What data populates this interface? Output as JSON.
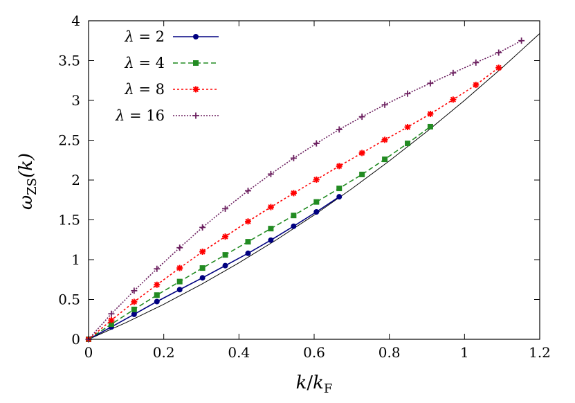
{
  "chart_data": {
    "type": "line",
    "xlabel": "k/k_F",
    "xlabel_parts": {
      "num": "k",
      "slash": "/",
      "den": "k",
      "den_sub": "F"
    },
    "ylabel": "ω_ZS(k)",
    "ylabel_parts": {
      "main": "ω",
      "sub": "ZS",
      "arg": "(k)"
    },
    "xlim": [
      0,
      1.2
    ],
    "ylim": [
      0,
      4
    ],
    "x_ticks": [
      0,
      0.2,
      0.4,
      0.6,
      0.8,
      1,
      1.2
    ],
    "x_tick_labels": [
      "0",
      "0.2",
      "0.4",
      "0.6",
      "0.8",
      "1",
      "1.2"
    ],
    "y_ticks": [
      0,
      0.5,
      1,
      1.5,
      2,
      2.5,
      3,
      3.5,
      4
    ],
    "y_tick_labels": [
      "0",
      "0.5",
      "1",
      "1.5",
      "2",
      "2.5",
      "3",
      "3.5",
      "4"
    ],
    "grid": false,
    "legend_position": "top-left",
    "reference_curve": {
      "color": "#000000",
      "x": [
        0,
        0.1,
        0.2,
        0.3,
        0.4,
        0.5,
        0.6,
        0.7,
        0.8,
        0.9,
        1.0,
        1.1,
        1.2
      ],
      "y": [
        0,
        0.21,
        0.44,
        0.69,
        0.96,
        1.25,
        1.56,
        1.89,
        2.24,
        2.61,
        3.0,
        3.41,
        3.84
      ]
    },
    "series": [
      {
        "name": "λ = 2",
        "label_lhs": "λ",
        "label_rhs": "= 2",
        "color": "#000080",
        "dash": "solid",
        "marker": "circle",
        "x": [
          0,
          0.0606,
          0.1212,
          0.1818,
          0.2424,
          0.303,
          0.3636,
          0.4242,
          0.4848,
          0.5455,
          0.6061,
          0.6667
        ],
        "y": [
          0,
          0.155,
          0.314,
          0.474,
          0.624,
          0.772,
          0.925,
          1.08,
          1.245,
          1.42,
          1.6,
          1.79
        ]
      },
      {
        "name": "λ = 4",
        "label_lhs": "λ",
        "label_rhs": "= 4",
        "color": "#228B22",
        "dash": "dashed",
        "marker": "square",
        "x": [
          0,
          0.0606,
          0.1212,
          0.1818,
          0.2424,
          0.303,
          0.3636,
          0.4242,
          0.4848,
          0.5455,
          0.6061,
          0.6667,
          0.7273,
          0.7879,
          0.8485,
          0.9091
        ],
        "y": [
          0,
          0.19,
          0.375,
          0.555,
          0.725,
          0.895,
          1.06,
          1.225,
          1.39,
          1.555,
          1.725,
          1.895,
          2.07,
          2.26,
          2.46,
          2.67
        ]
      },
      {
        "name": "λ = 8",
        "label_lhs": "λ",
        "label_rhs": "= 8",
        "color": "#FF0000",
        "dash": "dotted",
        "marker": "star",
        "x": [
          0,
          0.0606,
          0.1212,
          0.1818,
          0.2424,
          0.303,
          0.3636,
          0.4242,
          0.4848,
          0.5455,
          0.6061,
          0.6667,
          0.7273,
          0.7879,
          0.8485,
          0.9091,
          0.9697,
          1.0303,
          1.0909
        ],
        "y": [
          0,
          0.24,
          0.47,
          0.685,
          0.895,
          1.1,
          1.29,
          1.48,
          1.66,
          1.835,
          2.005,
          2.175,
          2.34,
          2.505,
          2.665,
          2.83,
          3.01,
          3.195,
          3.41
        ]
      },
      {
        "name": "λ = 16",
        "label_lhs": "λ",
        "label_rhs": "= 16",
        "color": "#6B1F5F",
        "dash": "densely-dotted",
        "marker": "plus",
        "x": [
          0,
          0.0606,
          0.1212,
          0.1818,
          0.2424,
          0.303,
          0.3636,
          0.4242,
          0.4848,
          0.5455,
          0.6061,
          0.6667,
          0.7273,
          0.7879,
          0.8485,
          0.9091,
          0.9697,
          1.0303,
          1.0909,
          1.1515
        ],
        "y": [
          0,
          0.32,
          0.61,
          0.885,
          1.15,
          1.405,
          1.64,
          1.865,
          2.075,
          2.275,
          2.46,
          2.635,
          2.795,
          2.945,
          3.085,
          3.215,
          3.345,
          3.475,
          3.6,
          3.75
        ]
      }
    ]
  }
}
